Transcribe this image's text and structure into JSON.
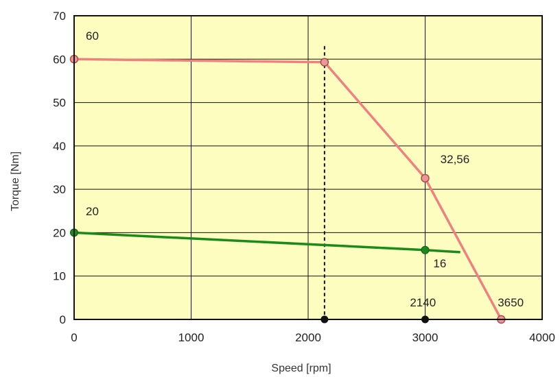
{
  "chart_data": {
    "type": "line",
    "title": "",
    "xlabel": "Speed [rpm]",
    "ylabel": "Torque [Nm]",
    "xlim": [
      0,
      4000
    ],
    "ylim": [
      0,
      70
    ],
    "xticks": [
      0,
      1000,
      2000,
      3000,
      4000
    ],
    "yticks": [
      0,
      10,
      20,
      30,
      40,
      50,
      60,
      70
    ],
    "x_tick_labels": [
      "0",
      "1000",
      "2000",
      "3000",
      "4000"
    ],
    "y_tick_labels": [
      "0",
      "10",
      "20",
      "30",
      "40",
      "50",
      "60",
      "70"
    ],
    "grid": true,
    "legend": "none",
    "colors": {
      "plot_bg": "#fdfdc0",
      "series_red": "#f08080",
      "series_green": "#1a8a1a",
      "marker_black": "#111111"
    },
    "series": [
      {
        "color": "#f08080",
        "x": [
          0,
          2140,
          3000,
          3650
        ],
        "y": [
          60,
          59.3,
          32.56,
          0
        ]
      },
      {
        "color": "#1a8a1a",
        "x": [
          0,
          3000,
          3300
        ],
        "y": [
          20,
          16,
          15.5
        ]
      }
    ],
    "reference_line": {
      "x": 2140,
      "y_top": 63,
      "style": "dashed"
    },
    "baseline_markers": [
      2140,
      3000
    ],
    "annotations": [
      {
        "text": "60",
        "x": 100,
        "y": 64.5
      },
      {
        "text": "32,56",
        "x": 3130,
        "y": 36
      },
      {
        "text": "20",
        "x": 100,
        "y": 24
      },
      {
        "text": "16",
        "x": 3070,
        "y": 12
      },
      {
        "text": "2140",
        "x": 2870,
        "y": 3
      },
      {
        "text": "3650",
        "x": 3620,
        "y": 3
      }
    ]
  }
}
